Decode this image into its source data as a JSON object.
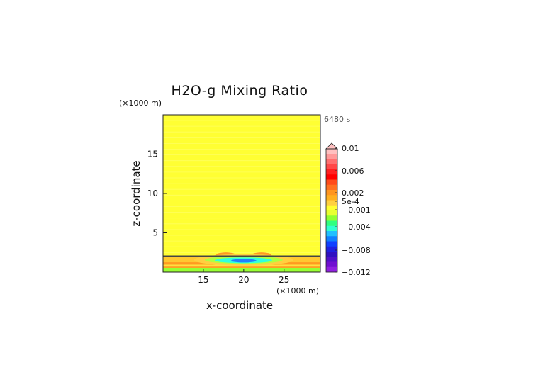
{
  "chart_data": {
    "type": "heatmap",
    "title": "H2O-g Mixing Ratio",
    "time_label": "6480 s",
    "xlabel": "x-coordinate",
    "ylabel": "z-coordinate",
    "x_unit": "(×1000 m)",
    "y_unit": "(×1000 m)",
    "xlim": [
      10,
      29.5
    ],
    "ylim": [
      0,
      20
    ],
    "x_ticks": [
      15,
      20,
      25
    ],
    "y_ticks": [
      5,
      10,
      15
    ],
    "background_value": 0.0,
    "colorbar": {
      "labels": [
        {
          "value": 0.01,
          "text": "0.01"
        },
        {
          "value": 0.006,
          "text": "0.006"
        },
        {
          "value": 0.002,
          "text": "0.002"
        },
        {
          "value": 0.0005,
          "text": "5e-4"
        },
        {
          "value": -0.001,
          "text": "−0.001"
        },
        {
          "value": -0.004,
          "text": "−0.004"
        },
        {
          "value": -0.008,
          "text": "−0.008"
        },
        {
          "value": -0.012,
          "text": "−0.012"
        }
      ],
      "colors_top_to_bottom": [
        "#ffc0c0",
        "#ff9a9a",
        "#ff7070",
        "#ff4848",
        "#ff2020",
        "#ff0000",
        "#ff4a1a",
        "#ff7020",
        "#ff9520",
        "#ffb020",
        "#ffd040",
        "#ffff30",
        "#e8ff30",
        "#90ff30",
        "#30ff80",
        "#30ffd0",
        "#20c0ff",
        "#1080ff",
        "#1040ff",
        "#2020e0",
        "#3010c0",
        "#5010c8",
        "#7010d0",
        "#9020e0"
      ]
    },
    "colors": {
      "background": "#ffff33",
      "band_upper": "#ff9a20",
      "band_lower": "#ffc830",
      "bottom_strip": "#99ff33",
      "boundary_line": "#444444",
      "cyan": "#30ffe0",
      "blue": "#2080ff"
    }
  }
}
